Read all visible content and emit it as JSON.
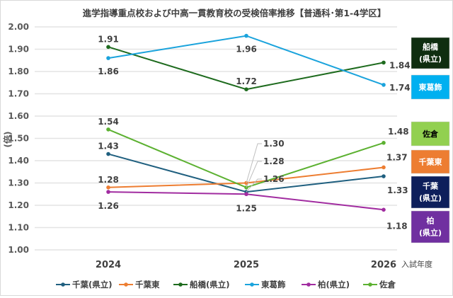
{
  "chart_data": {
    "type": "line",
    "title": "進学指導重点校および中高一貫教育校の受検倍率推移【普通科･第1-4学区】",
    "xlabel": "入試年度",
    "ylabel": "(倍)",
    "categories": [
      "2024",
      "2025",
      "2026"
    ],
    "ylim": [
      1.0,
      2.0
    ],
    "yticks": [
      "1.00",
      "1.10",
      "1.20",
      "1.30",
      "1.40",
      "1.50",
      "1.60",
      "1.70",
      "1.80",
      "1.90",
      "2.00"
    ],
    "grid": true,
    "legend": "bottom",
    "series": [
      {
        "name": "千葉(県立)",
        "values": [
          1.43,
          1.26,
          1.33
        ],
        "color": "#1f5f7f",
        "box": [
          "千葉",
          "(県立)"
        ],
        "box_color": "#0e1f5b",
        "box_text": "#ffffff"
      },
      {
        "name": "千葉東",
        "values": [
          1.28,
          1.3,
          1.37
        ],
        "color": "#ed7d31",
        "box": [
          "千葉東"
        ],
        "box_color": "#ed7d31",
        "box_text": "#ffffff"
      },
      {
        "name": "船橋(県立)",
        "values": [
          1.91,
          1.72,
          1.84
        ],
        "color": "#1e6b1e",
        "box": [
          "船橋",
          "(県立)"
        ],
        "box_color": "#0f2e10",
        "box_text": "#ffffff"
      },
      {
        "name": "東葛飾",
        "values": [
          1.86,
          1.96,
          1.74
        ],
        "color": "#1aa3dc",
        "box": [
          "東葛飾"
        ],
        "box_color": "#00b0f0",
        "box_text": "#ffffff"
      },
      {
        "name": "柏(県立)",
        "values": [
          1.26,
          1.25,
          1.18
        ],
        "color": "#a12ca0",
        "box": [
          "柏",
          "(県立)"
        ],
        "box_color": "#7030a0",
        "box_text": "#ffffff"
      },
      {
        "name": "佐倉",
        "values": [
          1.54,
          1.28,
          1.48
        ],
        "color": "#5cb131",
        "box": [
          "佐倉"
        ],
        "box_color": "#92d050",
        "box_text": "#000000"
      }
    ]
  }
}
